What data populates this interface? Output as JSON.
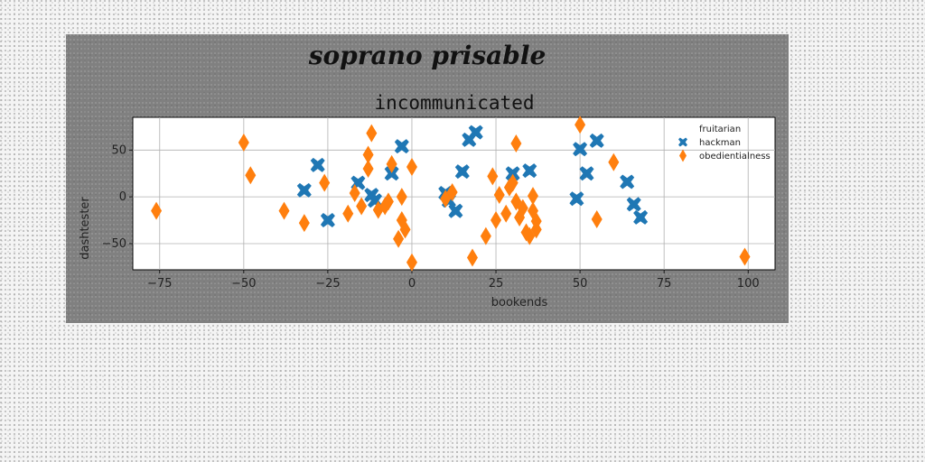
{
  "figure": {
    "suptitle": "soprano prisable",
    "background": "#808080"
  },
  "chart_data": {
    "type": "scatter",
    "title": "incommunicated",
    "xlabel": "bookends",
    "ylabel": "dashtester",
    "xlim": [
      -83,
      108
    ],
    "ylim": [
      -78,
      85
    ],
    "xticks": [
      -75,
      -50,
      -25,
      0,
      25,
      50,
      75,
      100
    ],
    "yticks": [
      -50,
      0,
      50
    ],
    "xtick_labels": [
      "−75",
      "−50",
      "−25",
      "0",
      "25",
      "50",
      "75",
      "100"
    ],
    "ytick_labels": [
      "−50",
      "0",
      "50"
    ],
    "grid": true,
    "legend_position": "top-right",
    "legend": [
      "fruitarian",
      "hackman",
      "obedientialness"
    ],
    "series": [
      {
        "name": "fruitarian",
        "marker": "none",
        "color": "#1f77b4",
        "points": []
      },
      {
        "name": "hackman",
        "marker": "x",
        "color": "#1f77b4",
        "points": [
          [
            -32,
            7
          ],
          [
            -28,
            34
          ],
          [
            -25,
            -25
          ],
          [
            -16,
            15
          ],
          [
            -12,
            2
          ],
          [
            -11,
            -4
          ],
          [
            -6,
            25
          ],
          [
            -3,
            54
          ],
          [
            10,
            4
          ],
          [
            11,
            -4
          ],
          [
            13,
            -15
          ],
          [
            15,
            27
          ],
          [
            17,
            61
          ],
          [
            19,
            69
          ],
          [
            30,
            25
          ],
          [
            35,
            28
          ],
          [
            50,
            51
          ],
          [
            52,
            25
          ],
          [
            55,
            60
          ],
          [
            49,
            -2
          ],
          [
            64,
            16
          ],
          [
            66,
            -8
          ],
          [
            68,
            -22
          ]
        ]
      },
      {
        "name": "obedientialness",
        "marker": "d",
        "color": "#ff7f0e",
        "points": [
          [
            -76,
            -15
          ],
          [
            -50,
            58
          ],
          [
            -48,
            23
          ],
          [
            -38,
            -15
          ],
          [
            -32,
            -28
          ],
          [
            -26,
            15
          ],
          [
            -19,
            -18
          ],
          [
            -17,
            4
          ],
          [
            -15,
            -10
          ],
          [
            -13,
            45
          ],
          [
            -13,
            30
          ],
          [
            -12,
            68
          ],
          [
            -10,
            -14
          ],
          [
            -8,
            -10
          ],
          [
            -7,
            -5
          ],
          [
            -6,
            35
          ],
          [
            -4,
            -45
          ],
          [
            -3,
            0
          ],
          [
            -3,
            -25
          ],
          [
            -2,
            -35
          ],
          [
            0,
            -70
          ],
          [
            0,
            32
          ],
          [
            10,
            -2
          ],
          [
            12,
            5
          ],
          [
            18,
            -65
          ],
          [
            22,
            -42
          ],
          [
            24,
            22
          ],
          [
            25,
            -25
          ],
          [
            26,
            2
          ],
          [
            28,
            -18
          ],
          [
            29,
            10
          ],
          [
            30,
            15
          ],
          [
            31,
            57
          ],
          [
            31,
            -5
          ],
          [
            32,
            -22
          ],
          [
            33,
            -12
          ],
          [
            34,
            -38
          ],
          [
            35,
            -42
          ],
          [
            36,
            1
          ],
          [
            36,
            -15
          ],
          [
            37,
            -26
          ],
          [
            37,
            -35
          ],
          [
            50,
            77
          ],
          [
            55,
            -24
          ],
          [
            60,
            37
          ],
          [
            99,
            -64
          ]
        ]
      }
    ]
  }
}
